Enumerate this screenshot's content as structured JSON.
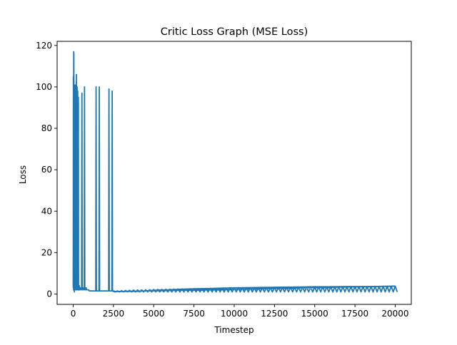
{
  "chart_data": {
    "type": "line",
    "title": "Critic Loss Graph (MSE Loss)",
    "xlabel": "Timestep",
    "ylabel": "Loss",
    "xlim": [
      -1000,
      21000
    ],
    "ylim": [
      -5,
      122
    ],
    "xticks": [
      0,
      2500,
      5000,
      7500,
      10000,
      12500,
      15000,
      17500,
      20000
    ],
    "yticks": [
      0,
      20,
      40,
      60,
      80,
      100,
      120
    ],
    "grid": false,
    "legend": "none",
    "line_color": "#1f77b4",
    "series": [
      {
        "x": [
          0,
          10,
          20,
          30,
          40,
          50,
          60,
          70,
          80,
          90,
          100,
          110,
          120,
          130,
          140,
          150,
          160,
          170,
          180,
          190,
          200,
          210,
          220,
          230,
          240,
          250,
          260,
          270,
          280,
          290,
          300,
          310,
          320,
          330,
          340,
          360,
          380,
          400,
          440,
          480,
          520,
          540,
          560,
          600,
          640,
          680,
          700,
          720,
          760,
          800,
          840,
          860,
          880,
          920,
          960,
          1000,
          1100,
          1200,
          1300,
          1400,
          1420,
          1440,
          1500,
          1600,
          1620,
          1640,
          1700,
          1800,
          1900,
          2000,
          2100,
          2200,
          2220,
          2240,
          2300,
          2400,
          2420,
          2440,
          2500,
          2600,
          2800,
          3000,
          3500,
          4000,
          4500,
          5000,
          6000,
          7000,
          8000,
          9000,
          10000,
          11000,
          12000,
          13000,
          14000,
          15000,
          16000,
          17000,
          18000,
          19000,
          20000
        ],
        "y": [
          3,
          105,
          2,
          117,
          116,
          3,
          90,
          1,
          100,
          2,
          88,
          4,
          101,
          3,
          85,
          2,
          99,
          4,
          92,
          2,
          106,
          3,
          80,
          2,
          100,
          3,
          70,
          2,
          98,
          3,
          60,
          2,
          95,
          2,
          3,
          2,
          4,
          2,
          3,
          2,
          3,
          97,
          2,
          3,
          2,
          3,
          100,
          2,
          2,
          3,
          2,
          2,
          2,
          2,
          2,
          1.5,
          1.5,
          1.5,
          1.5,
          1.5,
          100,
          1.5,
          1.5,
          1.5,
          100,
          1.5,
          1.5,
          1.5,
          1.5,
          1.5,
          1.5,
          1.5,
          99,
          1.5,
          1.5,
          1.5,
          98,
          1.5,
          1.5,
          1.2,
          1.2,
          1.2,
          1.3,
          1.3,
          1.5,
          1.8,
          2.1,
          2.4,
          2.6,
          2.8,
          3.0,
          3.1,
          3.2,
          3.3,
          3.4,
          3.5,
          3.5,
          3.6,
          3.6,
          3.7,
          3.8
        ]
      }
    ]
  }
}
